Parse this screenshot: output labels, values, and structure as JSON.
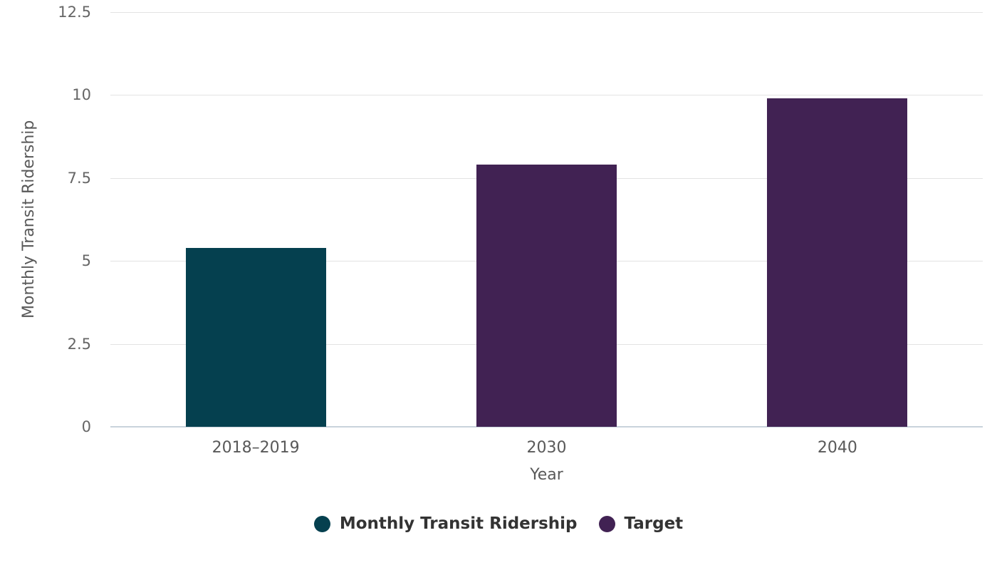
{
  "chart_data": {
    "type": "bar",
    "title": "",
    "xlabel": "Year",
    "ylabel": "Monthly Transit Ridership",
    "categories": [
      "2018–2019",
      "2030",
      "2040"
    ],
    "bars": [
      {
        "category": "2018–2019",
        "series": "Monthly Transit Ridership",
        "value": 5.4
      },
      {
        "category": "2030",
        "series": "Target",
        "value": 7.9
      },
      {
        "category": "2040",
        "series": "Target",
        "value": 9.9
      }
    ],
    "series": [
      {
        "name": "Monthly Transit Ridership",
        "color": "#05404f"
      },
      {
        "name": "Target",
        "color": "#412253"
      }
    ],
    "ylim": [
      0,
      12.5
    ],
    "yticks": [
      0,
      2.5,
      5,
      7.5,
      10,
      12.5
    ],
    "grid": true,
    "legend_position": "bottom"
  },
  "colors": {
    "background": "#ffffff",
    "gridline": "#e3e3e3",
    "baseline": "#c9d3dc",
    "tick_label": "#666666",
    "axis_title": "#595959",
    "legend_text": "#333333"
  }
}
